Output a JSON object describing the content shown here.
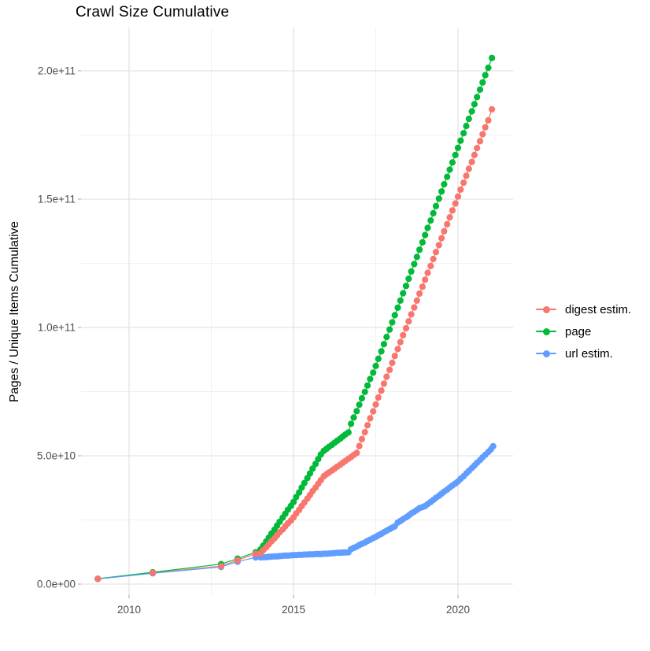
{
  "title": "Crawl Size Cumulative",
  "y_axis": {
    "label": "Pages / Unique Items Cumulative",
    "ticks": [
      "0.0e+00",
      "5.0e+10",
      "1.0e+11",
      "1.5e+11",
      "2.0e+11"
    ],
    "tick_values_billions": [
      0,
      50,
      100,
      150,
      200
    ],
    "minor_grid_billions": [
      25,
      75,
      125,
      175
    ]
  },
  "x_axis": {
    "ticks": [
      "2010",
      "2015",
      "2020"
    ],
    "tick_values": [
      2010,
      2015,
      2020
    ],
    "minor_grid_values": [
      2012.5,
      2017.5
    ]
  },
  "legend": {
    "items": [
      {
        "label": "digest estim.",
        "color": "#F8766D"
      },
      {
        "label": "page",
        "color": "#00BA38"
      },
      {
        "label": "url estim.",
        "color": "#619CFF"
      }
    ]
  },
  "colors": {
    "grid_major": "#e3e3e3",
    "grid_minor": "#f0f0f0",
    "tick": "#b5b5b5",
    "tick_text": "#4d4d4d"
  },
  "chart_data": {
    "type": "line",
    "title": "Crawl Size Cumulative",
    "xlabel": "",
    "ylabel": "Pages / Unique Items Cumulative",
    "unit": "point values in billions (1e9) of pages / unique items",
    "xlim": [
      2008.5,
      2021.7
    ],
    "ylim_billions": [
      -4,
      217
    ],
    "grid": true,
    "legend_position": "right",
    "series": [
      {
        "name": "digest estim.",
        "color": "#F8766D",
        "points": [
          [
            2009.05,
            2.1
          ],
          [
            2010.72,
            4.4
          ],
          [
            2012.8,
            7.0
          ],
          [
            2013.3,
            9.3
          ],
          [
            2013.85,
            11.8
          ],
          [
            2014,
            12
          ],
          [
            2014.08,
            13.2
          ],
          [
            2014.17,
            14.3
          ],
          [
            2014.25,
            15.5
          ],
          [
            2014.33,
            16.7
          ],
          [
            2014.42,
            17.8
          ],
          [
            2014.5,
            19
          ],
          [
            2014.58,
            20.2
          ],
          [
            2014.67,
            21.3
          ],
          [
            2014.75,
            22.5
          ],
          [
            2014.83,
            23.7
          ],
          [
            2014.92,
            24.8
          ],
          [
            2015,
            26
          ],
          [
            2015.08,
            27.5
          ],
          [
            2015.17,
            28.9
          ],
          [
            2015.25,
            30.4
          ],
          [
            2015.33,
            31.8
          ],
          [
            2015.42,
            33.3
          ],
          [
            2015.5,
            34.7
          ],
          [
            2015.58,
            36.2
          ],
          [
            2015.67,
            37.6
          ],
          [
            2015.75,
            39.1
          ],
          [
            2015.83,
            40.5
          ],
          [
            2015.92,
            42
          ],
          [
            2016,
            42.8
          ],
          [
            2016.08,
            43.5
          ],
          [
            2016.17,
            44.3
          ],
          [
            2016.25,
            45
          ],
          [
            2016.33,
            45.8
          ],
          [
            2016.42,
            46.5
          ],
          [
            2016.5,
            47.3
          ],
          [
            2016.58,
            48
          ],
          [
            2016.67,
            48.8
          ],
          [
            2016.75,
            49.5
          ],
          [
            2016.83,
            50.3
          ],
          [
            2016.92,
            51.1
          ],
          [
            2017,
            53.8
          ],
          [
            2017.08,
            56.5
          ],
          [
            2017.17,
            59.2
          ],
          [
            2017.25,
            61.9
          ],
          [
            2017.33,
            64.6
          ],
          [
            2017.42,
            67.3
          ],
          [
            2017.5,
            70
          ],
          [
            2017.58,
            72.7
          ],
          [
            2017.67,
            75.4
          ],
          [
            2017.75,
            78.1
          ],
          [
            2017.83,
            80.8
          ],
          [
            2017.92,
            83.5
          ],
          [
            2018,
            86.2
          ],
          [
            2018.08,
            88.9
          ],
          [
            2018.17,
            91.6
          ],
          [
            2018.25,
            94.3
          ],
          [
            2018.33,
            97
          ],
          [
            2018.42,
            99.7
          ],
          [
            2018.5,
            102.4
          ],
          [
            2018.58,
            105.1
          ],
          [
            2018.67,
            107.8
          ],
          [
            2018.75,
            110.5
          ],
          [
            2018.83,
            113.2
          ],
          [
            2018.92,
            115.9
          ],
          [
            2019,
            118.6
          ],
          [
            2019.08,
            121.3
          ],
          [
            2019.17,
            124
          ],
          [
            2019.25,
            126.7
          ],
          [
            2019.33,
            129.4
          ],
          [
            2019.42,
            132.1
          ],
          [
            2019.5,
            134.8
          ],
          [
            2019.58,
            137.5
          ],
          [
            2019.67,
            140.2
          ],
          [
            2019.75,
            142.9
          ],
          [
            2019.83,
            145.6
          ],
          [
            2019.92,
            148.3
          ],
          [
            2020,
            151
          ],
          [
            2020.08,
            153.7
          ],
          [
            2020.17,
            156.4
          ],
          [
            2020.25,
            159.1
          ],
          [
            2020.33,
            161.8
          ],
          [
            2020.42,
            164.5
          ],
          [
            2020.5,
            167.2
          ],
          [
            2020.58,
            169.9
          ],
          [
            2020.67,
            172.6
          ],
          [
            2020.75,
            175.3
          ],
          [
            2020.83,
            178
          ],
          [
            2020.92,
            180.7
          ],
          [
            2021.03,
            185
          ]
        ]
      },
      {
        "name": "page",
        "color": "#00BA38",
        "points": [
          [
            2009.05,
            2.1
          ],
          [
            2010.72,
            4.6
          ],
          [
            2012.8,
            7.8
          ],
          [
            2013.3,
            9.9
          ],
          [
            2013.85,
            12.4
          ],
          [
            2014,
            13.5
          ],
          [
            2014.08,
            15
          ],
          [
            2014.17,
            16.6
          ],
          [
            2014.25,
            18.1
          ],
          [
            2014.33,
            19.7
          ],
          [
            2014.42,
            21.2
          ],
          [
            2014.5,
            22.8
          ],
          [
            2014.58,
            24.3
          ],
          [
            2014.67,
            25.9
          ],
          [
            2014.75,
            27.4
          ],
          [
            2014.83,
            29
          ],
          [
            2014.92,
            30.5
          ],
          [
            2015,
            32
          ],
          [
            2015.08,
            33.9
          ],
          [
            2015.17,
            35.7
          ],
          [
            2015.25,
            37.6
          ],
          [
            2015.33,
            39.4
          ],
          [
            2015.42,
            41.3
          ],
          [
            2015.5,
            43.1
          ],
          [
            2015.58,
            45
          ],
          [
            2015.67,
            46.8
          ],
          [
            2015.75,
            48.7
          ],
          [
            2015.83,
            50.5
          ],
          [
            2015.92,
            51.9
          ],
          [
            2016,
            52.7
          ],
          [
            2016.08,
            53.5
          ],
          [
            2016.17,
            54.3
          ],
          [
            2016.25,
            55.1
          ],
          [
            2016.33,
            55.9
          ],
          [
            2016.42,
            56.7
          ],
          [
            2016.5,
            57.5
          ],
          [
            2016.58,
            58.3
          ],
          [
            2016.67,
            59.1
          ],
          [
            2016.75,
            62.5
          ],
          [
            2016.83,
            64.9
          ],
          [
            2016.92,
            67.4
          ],
          [
            2017,
            69.9
          ],
          [
            2017.08,
            72.4
          ],
          [
            2017.17,
            74.9
          ],
          [
            2017.25,
            77.4
          ],
          [
            2017.33,
            79.9
          ],
          [
            2017.42,
            82.4
          ],
          [
            2017.5,
            85
          ],
          [
            2017.58,
            87.8
          ],
          [
            2017.67,
            90.7
          ],
          [
            2017.75,
            93.5
          ],
          [
            2017.83,
            96.3
          ],
          [
            2017.92,
            99.2
          ],
          [
            2018,
            102
          ],
          [
            2018.08,
            104.8
          ],
          [
            2018.17,
            107.7
          ],
          [
            2018.25,
            110.5
          ],
          [
            2018.33,
            113.3
          ],
          [
            2018.42,
            116.2
          ],
          [
            2018.5,
            119
          ],
          [
            2018.58,
            121.8
          ],
          [
            2018.67,
            124.7
          ],
          [
            2018.75,
            127.5
          ],
          [
            2018.83,
            130.3
          ],
          [
            2018.92,
            133.2
          ],
          [
            2019,
            136
          ],
          [
            2019.08,
            138.8
          ],
          [
            2019.17,
            141.7
          ],
          [
            2019.25,
            144.5
          ],
          [
            2019.33,
            147.3
          ],
          [
            2019.42,
            150.2
          ],
          [
            2019.5,
            153
          ],
          [
            2019.58,
            155.8
          ],
          [
            2019.67,
            158.7
          ],
          [
            2019.75,
            161.5
          ],
          [
            2019.83,
            164.3
          ],
          [
            2019.92,
            167.2
          ],
          [
            2020,
            170
          ],
          [
            2020.08,
            172.8
          ],
          [
            2020.17,
            175.7
          ],
          [
            2020.25,
            178.5
          ],
          [
            2020.33,
            181.3
          ],
          [
            2020.42,
            184.2
          ],
          [
            2020.5,
            187
          ],
          [
            2020.58,
            189.8
          ],
          [
            2020.67,
            192.7
          ],
          [
            2020.75,
            195.5
          ],
          [
            2020.83,
            198.3
          ],
          [
            2020.92,
            201.2
          ],
          [
            2021.03,
            205
          ]
        ]
      },
      {
        "name": "url estim.",
        "color": "#619CFF",
        "points": [
          [
            2009.05,
            2
          ],
          [
            2010.72,
            4.2
          ],
          [
            2012.8,
            6.7
          ],
          [
            2013.3,
            8.7
          ],
          [
            2013.85,
            10.4
          ],
          [
            2014,
            10.4
          ],
          [
            2014.08,
            10.5
          ],
          [
            2014.17,
            10.5
          ],
          [
            2014.25,
            10.6
          ],
          [
            2014.33,
            10.7
          ],
          [
            2014.42,
            10.8
          ],
          [
            2014.5,
            10.8
          ],
          [
            2014.58,
            10.9
          ],
          [
            2014.67,
            11
          ],
          [
            2014.75,
            11.1
          ],
          [
            2014.83,
            11.1
          ],
          [
            2014.92,
            11.2
          ],
          [
            2015,
            11.3
          ],
          [
            2015.08,
            11.3
          ],
          [
            2015.17,
            11.4
          ],
          [
            2015.25,
            11.4
          ],
          [
            2015.33,
            11.5
          ],
          [
            2015.42,
            11.5
          ],
          [
            2015.5,
            11.6
          ],
          [
            2015.58,
            11.6
          ],
          [
            2015.67,
            11.7
          ],
          [
            2015.75,
            11.7
          ],
          [
            2015.83,
            11.7
          ],
          [
            2015.92,
            11.8
          ],
          [
            2016,
            11.8
          ],
          [
            2016.08,
            11.9
          ],
          [
            2016.17,
            12
          ],
          [
            2016.25,
            12.1
          ],
          [
            2016.33,
            12.2
          ],
          [
            2016.42,
            12.2
          ],
          [
            2016.5,
            12.3
          ],
          [
            2016.58,
            12.3
          ],
          [
            2016.67,
            12.4
          ],
          [
            2016.75,
            13.6
          ],
          [
            2016.83,
            14.1
          ],
          [
            2016.92,
            14.6
          ],
          [
            2017,
            15.2
          ],
          [
            2017.08,
            15.7
          ],
          [
            2017.17,
            16.2
          ],
          [
            2017.25,
            16.8
          ],
          [
            2017.33,
            17.3
          ],
          [
            2017.42,
            17.9
          ],
          [
            2017.5,
            18.4
          ],
          [
            2017.58,
            19
          ],
          [
            2017.67,
            19.6
          ],
          [
            2017.75,
            20.2
          ],
          [
            2017.83,
            20.8
          ],
          [
            2017.92,
            21.4
          ],
          [
            2018,
            22
          ],
          [
            2018.08,
            22.5
          ],
          [
            2018.17,
            24
          ],
          [
            2018.25,
            24.6
          ],
          [
            2018.33,
            25.3
          ],
          [
            2018.42,
            26
          ],
          [
            2018.5,
            26.7
          ],
          [
            2018.58,
            27.5
          ],
          [
            2018.67,
            28.2
          ],
          [
            2018.75,
            28.9
          ],
          [
            2018.83,
            29.6
          ],
          [
            2018.92,
            30
          ],
          [
            2019,
            30.4
          ],
          [
            2019.08,
            31.2
          ],
          [
            2019.17,
            32
          ],
          [
            2019.25,
            32.8
          ],
          [
            2019.33,
            33.6
          ],
          [
            2019.42,
            34.4
          ],
          [
            2019.5,
            35.2
          ],
          [
            2019.58,
            36
          ],
          [
            2019.67,
            36.8
          ],
          [
            2019.75,
            37.6
          ],
          [
            2019.83,
            38.4
          ],
          [
            2019.92,
            39.2
          ],
          [
            2020,
            40
          ],
          [
            2020.08,
            41
          ],
          [
            2020.17,
            42
          ],
          [
            2020.25,
            43.1
          ],
          [
            2020.33,
            44.1
          ],
          [
            2020.42,
            45.2
          ],
          [
            2020.5,
            46.2
          ],
          [
            2020.58,
            47.3
          ],
          [
            2020.67,
            48.3
          ],
          [
            2020.75,
            49.4
          ],
          [
            2020.83,
            50.4
          ],
          [
            2020.92,
            51.5
          ],
          [
            2021,
            52.5
          ],
          [
            2021.07,
            53.7
          ]
        ]
      }
    ]
  }
}
